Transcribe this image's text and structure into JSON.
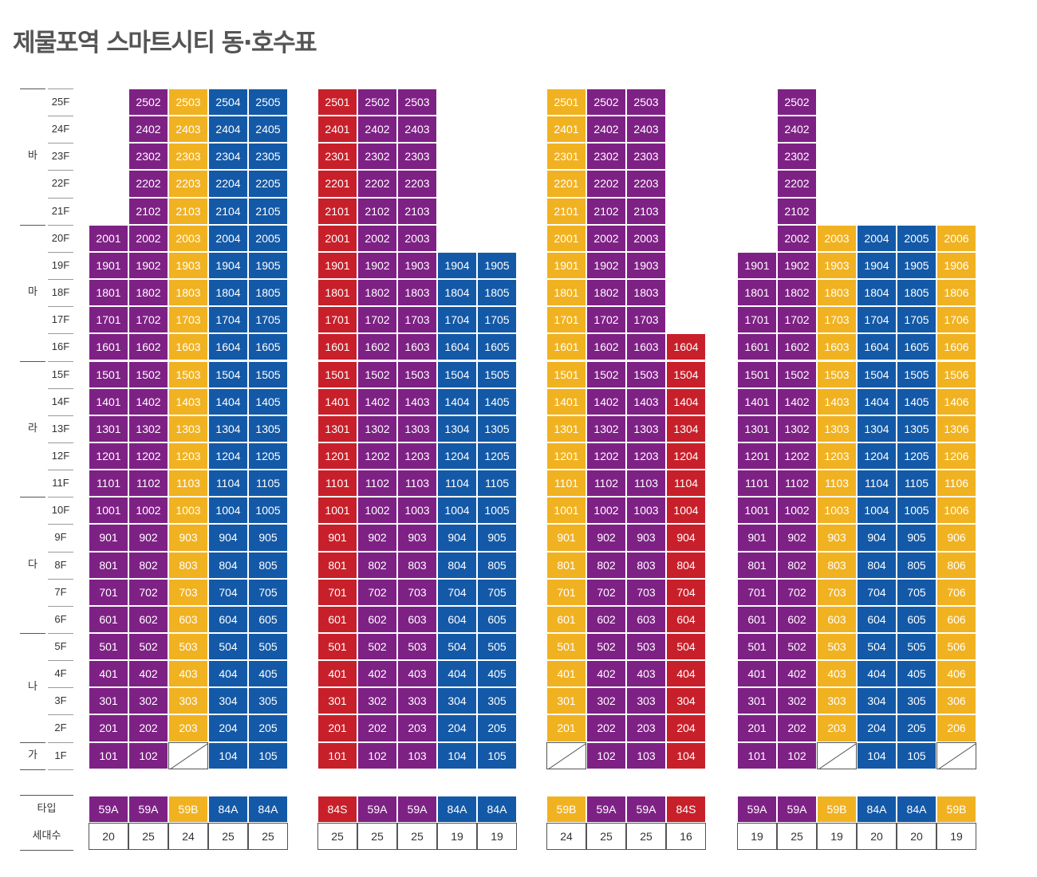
{
  "title": "제물포역 스마트시티 동·호수표",
  "colors": {
    "P": "#7e2185",
    "Y": "#f1b221",
    "B": "#1359a7",
    "R": "#c8202a"
  },
  "floors": [
    "25F",
    "24F",
    "23F",
    "22F",
    "21F",
    "20F",
    "19F",
    "18F",
    "17F",
    "16F",
    "15F",
    "14F",
    "13F",
    "12F",
    "11F",
    "10F",
    "9F",
    "8F",
    "7F",
    "6F",
    "5F",
    "4F",
    "3F",
    "2F",
    "1F"
  ],
  "floor_groups": [
    "바",
    "마",
    "라",
    "다",
    "나",
    "가"
  ],
  "row_labels": {
    "type": "타입",
    "households": "세대수"
  },
  "buildings": [
    {
      "columns": [
        {
          "color": "P",
          "type": "59A",
          "households": "20",
          "top_floor": 20,
          "empty_1f": false
        },
        {
          "color": "P",
          "type": "59A",
          "households": "25",
          "top_floor": 25,
          "empty_1f": false
        },
        {
          "color": "Y",
          "type": "59B",
          "households": "24",
          "top_floor": 25,
          "empty_1f": true
        },
        {
          "color": "B",
          "type": "84A",
          "households": "25",
          "top_floor": 25,
          "empty_1f": false
        },
        {
          "color": "B",
          "type": "84A",
          "households": "25",
          "top_floor": 25,
          "empty_1f": false
        }
      ]
    },
    {
      "columns": [
        {
          "color": "R",
          "type": "84S",
          "households": "25",
          "top_floor": 25,
          "empty_1f": false
        },
        {
          "color": "P",
          "type": "59A",
          "households": "25",
          "top_floor": 25,
          "empty_1f": false
        },
        {
          "color": "P",
          "type": "59A",
          "households": "25",
          "top_floor": 25,
          "empty_1f": false
        },
        {
          "color": "B",
          "type": "84A",
          "households": "19",
          "top_floor": 19,
          "empty_1f": false
        },
        {
          "color": "B",
          "type": "84A",
          "households": "19",
          "top_floor": 19,
          "empty_1f": false
        }
      ]
    },
    {
      "columns": [
        {
          "color": "Y",
          "type": "59B",
          "households": "24",
          "top_floor": 25,
          "empty_1f": true
        },
        {
          "color": "P",
          "type": "59A",
          "households": "25",
          "top_floor": 25,
          "empty_1f": false
        },
        {
          "color": "P",
          "type": "59A",
          "households": "25",
          "top_floor": 25,
          "empty_1f": false
        },
        {
          "color": "R",
          "type": "84S",
          "households": "16",
          "top_floor": 16,
          "empty_1f": false
        }
      ]
    },
    {
      "columns": [
        {
          "color": "P",
          "type": "59A",
          "households": "19",
          "top_floor": 19,
          "empty_1f": false
        },
        {
          "color": "P",
          "type": "59A",
          "households": "25",
          "top_floor": 25,
          "empty_1f": false
        },
        {
          "color": "Y",
          "type": "59B",
          "households": "19",
          "top_floor": 20,
          "empty_1f": true
        },
        {
          "color": "B",
          "type": "84A",
          "households": "20",
          "top_floor": 20,
          "empty_1f": false
        },
        {
          "color": "B",
          "type": "84A",
          "households": "20",
          "top_floor": 20,
          "empty_1f": false
        },
        {
          "color": "Y",
          "type": "59B",
          "households": "19",
          "top_floor": 20,
          "empty_1f": true
        }
      ]
    }
  ]
}
